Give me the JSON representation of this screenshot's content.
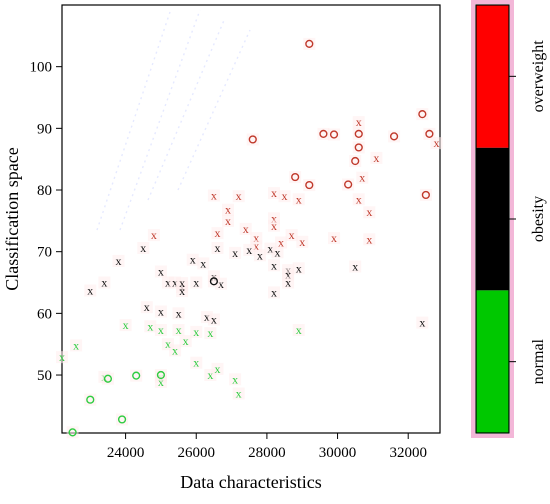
{
  "chart_data": {
    "type": "scatter",
    "xlabel": "Data characteristics",
    "ylabel": "Classification space",
    "xlim": [
      22200,
      32900
    ],
    "ylim": [
      40.6,
      110
    ],
    "xticks": [
      24000,
      26000,
      28000,
      30000,
      32000
    ],
    "yticks": [
      50,
      60,
      70,
      80,
      90,
      100
    ],
    "legend_position": "right",
    "legend": {
      "type": "colorbar",
      "labels": [
        "normal",
        "obesity",
        "overweight"
      ],
      "colors": [
        "#00c800",
        "#000000",
        "#ff0000"
      ]
    },
    "markers": [
      "x",
      "o"
    ],
    "series": [
      {
        "color": "#c0392b",
        "points": [
          [
            24800,
            72.7,
            "x"
          ],
          [
            26500,
            79.1,
            "x"
          ],
          [
            26600,
            73.0,
            "x"
          ],
          [
            26900,
            76.8,
            "x"
          ],
          [
            27200,
            79.0,
            "x"
          ],
          [
            27400,
            73.7,
            "x"
          ],
          [
            27700,
            72.2,
            "x"
          ],
          [
            26900,
            75.0,
            "x"
          ],
          [
            28200,
            79.5,
            "x"
          ],
          [
            28500,
            79.0,
            "x"
          ],
          [
            28200,
            75.4,
            "x"
          ],
          [
            28200,
            74.2,
            "x"
          ],
          [
            28700,
            72.7,
            "x"
          ],
          [
            28900,
            78.5,
            "x"
          ],
          [
            28400,
            71.5,
            "x"
          ],
          [
            29900,
            72.2,
            "x"
          ],
          [
            30600,
            91.0,
            "x"
          ],
          [
            30700,
            82.0,
            "x"
          ],
          [
            30600,
            78.5,
            "x"
          ],
          [
            30900,
            76.4,
            "x"
          ],
          [
            31100,
            85.2,
            "x"
          ],
          [
            30900,
            72.0,
            "x"
          ],
          [
            32800,
            87.6,
            "x"
          ],
          [
            27700,
            70.9,
            "x"
          ],
          [
            29000,
            71.6,
            "x"
          ],
          [
            27600,
            88.2,
            "o"
          ],
          [
            29200,
            103.7,
            "o"
          ],
          [
            29600,
            89.1,
            "o"
          ],
          [
            29900,
            89.0,
            "o"
          ],
          [
            30600,
            89.1,
            "o"
          ],
          [
            30500,
            84.7,
            "o"
          ],
          [
            30300,
            80.9,
            "o"
          ],
          [
            29200,
            80.8,
            "o"
          ],
          [
            28800,
            82.1,
            "o"
          ],
          [
            31600,
            88.7,
            "o"
          ],
          [
            32400,
            92.3,
            "o"
          ],
          [
            32600,
            89.1,
            "o"
          ],
          [
            32500,
            79.2,
            "o"
          ],
          [
            30600,
            86.9,
            "o"
          ]
        ]
      },
      {
        "color": "#111111",
        "points": [
          [
            23000,
            63.7,
            "x"
          ],
          [
            23400,
            65.0,
            "x"
          ],
          [
            23800,
            68.5,
            "x"
          ],
          [
            24500,
            70.6,
            "x"
          ],
          [
            24600,
            61.0,
            "x"
          ],
          [
            25000,
            66.8,
            "x"
          ],
          [
            25200,
            65.0,
            "x"
          ],
          [
            25400,
            65.0,
            "x"
          ],
          [
            25600,
            64.3,
            "x"
          ],
          [
            25600,
            63.6,
            "x"
          ],
          [
            25500,
            60.0,
            "x"
          ],
          [
            25600,
            64.9,
            "x"
          ],
          [
            25900,
            68.7,
            "x"
          ],
          [
            26000,
            65.0,
            "x"
          ],
          [
            26200,
            68.1,
            "x"
          ],
          [
            26300,
            59.4,
            "x"
          ],
          [
            26500,
            66.0,
            "x"
          ],
          [
            26500,
            59.0,
            "x"
          ],
          [
            26600,
            70.6,
            "x"
          ],
          [
            26700,
            64.8,
            "x"
          ],
          [
            27100,
            69.8,
            "x"
          ],
          [
            27500,
            70.3,
            "x"
          ],
          [
            27800,
            69.4,
            "x"
          ],
          [
            28100,
            70.5,
            "x"
          ],
          [
            28300,
            69.9,
            "x"
          ],
          [
            28200,
            67.8,
            "x"
          ],
          [
            28200,
            63.4,
            "x"
          ],
          [
            28600,
            67.0,
            "x"
          ],
          [
            28600,
            66.3,
            "x"
          ],
          [
            28600,
            65.0,
            "x"
          ],
          [
            28900,
            67.3,
            "x"
          ],
          [
            30500,
            67.6,
            "x"
          ],
          [
            32400,
            58.5,
            "x"
          ],
          [
            25000,
            60.3,
            "x"
          ],
          [
            26500,
            65.2,
            "o"
          ]
        ]
      },
      {
        "color": "#2ecc40",
        "points": [
          [
            22600,
            54.8,
            "x"
          ],
          [
            22200,
            52.9,
            "x"
          ],
          [
            23400,
            49.7,
            "x"
          ],
          [
            24000,
            58.1,
            "x"
          ],
          [
            24700,
            57.9,
            "x"
          ],
          [
            25000,
            49.7,
            "x"
          ],
          [
            25000,
            48.9,
            "x"
          ],
          [
            25000,
            57.3,
            "x"
          ],
          [
            25200,
            55.0,
            "x"
          ],
          [
            25400,
            54.0,
            "x"
          ],
          [
            25500,
            57.3,
            "x"
          ],
          [
            25700,
            55.5,
            "x"
          ],
          [
            26000,
            57.0,
            "x"
          ],
          [
            26000,
            52.0,
            "x"
          ],
          [
            26400,
            56.8,
            "x"
          ],
          [
            26400,
            50.0,
            "x"
          ],
          [
            26600,
            51.0,
            "x"
          ],
          [
            27200,
            47.0,
            "x"
          ],
          [
            28900,
            57.3,
            "x"
          ],
          [
            27100,
            49.3,
            "x"
          ],
          [
            22500,
            40.7,
            "o"
          ],
          [
            23500,
            49.4,
            "o"
          ],
          [
            23000,
            46.0,
            "o"
          ],
          [
            23900,
            42.8,
            "o"
          ],
          [
            24300,
            49.9,
            "o"
          ],
          [
            25000,
            50.0,
            "o"
          ]
        ]
      }
    ]
  }
}
